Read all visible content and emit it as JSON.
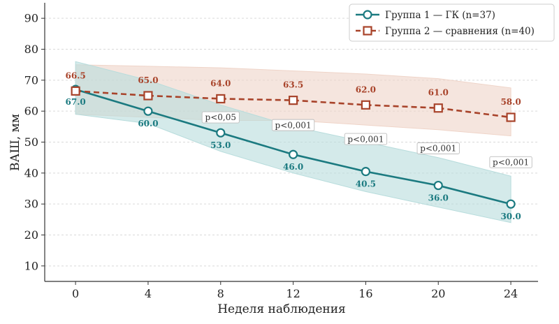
{
  "chart_data": {
    "type": "line",
    "xlabel": "Неделя наблюдения",
    "ylabel": "ВАШ, мм",
    "x": [
      0,
      4,
      8,
      12,
      16,
      20,
      24
    ],
    "xticks": [
      "0",
      "4",
      "8",
      "12",
      "16",
      "20",
      "24"
    ],
    "xlim": [
      -1.7,
      25.5
    ],
    "ylim": [
      5,
      95
    ],
    "yticks": [
      "10",
      "20",
      "30",
      "40",
      "50",
      "60",
      "70",
      "80",
      "90"
    ],
    "grid": "horizontal-dashed",
    "legend_position": "top-right",
    "series": [
      {
        "name": "Группа 1 — ГК (n=37)",
        "color": "#1b7a80",
        "band_color": "#b7dcdc",
        "line_style": "solid",
        "marker": "circle",
        "label_position": "below",
        "values": [
          67.0,
          60.0,
          53.0,
          46.0,
          40.5,
          36.0,
          30.0
        ],
        "labels": [
          "67.0",
          "60.0",
          "53.0",
          "46.0",
          "40.5",
          "36.0",
          "30.0"
        ],
        "band_upper": [
          76,
          70,
          62,
          55,
          50,
          45,
          39
        ],
        "band_lower": [
          59,
          56,
          47,
          40,
          34,
          29,
          24
        ]
      },
      {
        "name": "Группа 2 — сравнения (n=40)",
        "color": "#a8432a",
        "band_color": "#efd4c8",
        "line_style": "dashed",
        "marker": "square",
        "label_position": "above",
        "values": [
          66.5,
          65.0,
          64.0,
          63.5,
          62.0,
          61.0,
          58.0
        ],
        "labels": [
          "66.5",
          "65.0",
          "64.0",
          "63.5",
          "62.0",
          "61.0",
          "58.0"
        ],
        "band_upper": [
          75,
          74.5,
          74,
          73,
          72,
          70.5,
          67.5
        ],
        "band_lower": [
          59,
          58,
          57,
          57,
          55.5,
          54,
          52
        ]
      }
    ],
    "annotations": [
      {
        "text": "p<0,05",
        "x": 8,
        "y": 58
      },
      {
        "text": "p<0,001",
        "x": 12,
        "y": 55.5
      },
      {
        "text": "p<0,001",
        "x": 16,
        "y": 51
      },
      {
        "text": "p<0,001",
        "x": 20,
        "y": 48
      },
      {
        "text": "p<0,001",
        "x": 24,
        "y": 43.5
      }
    ]
  }
}
